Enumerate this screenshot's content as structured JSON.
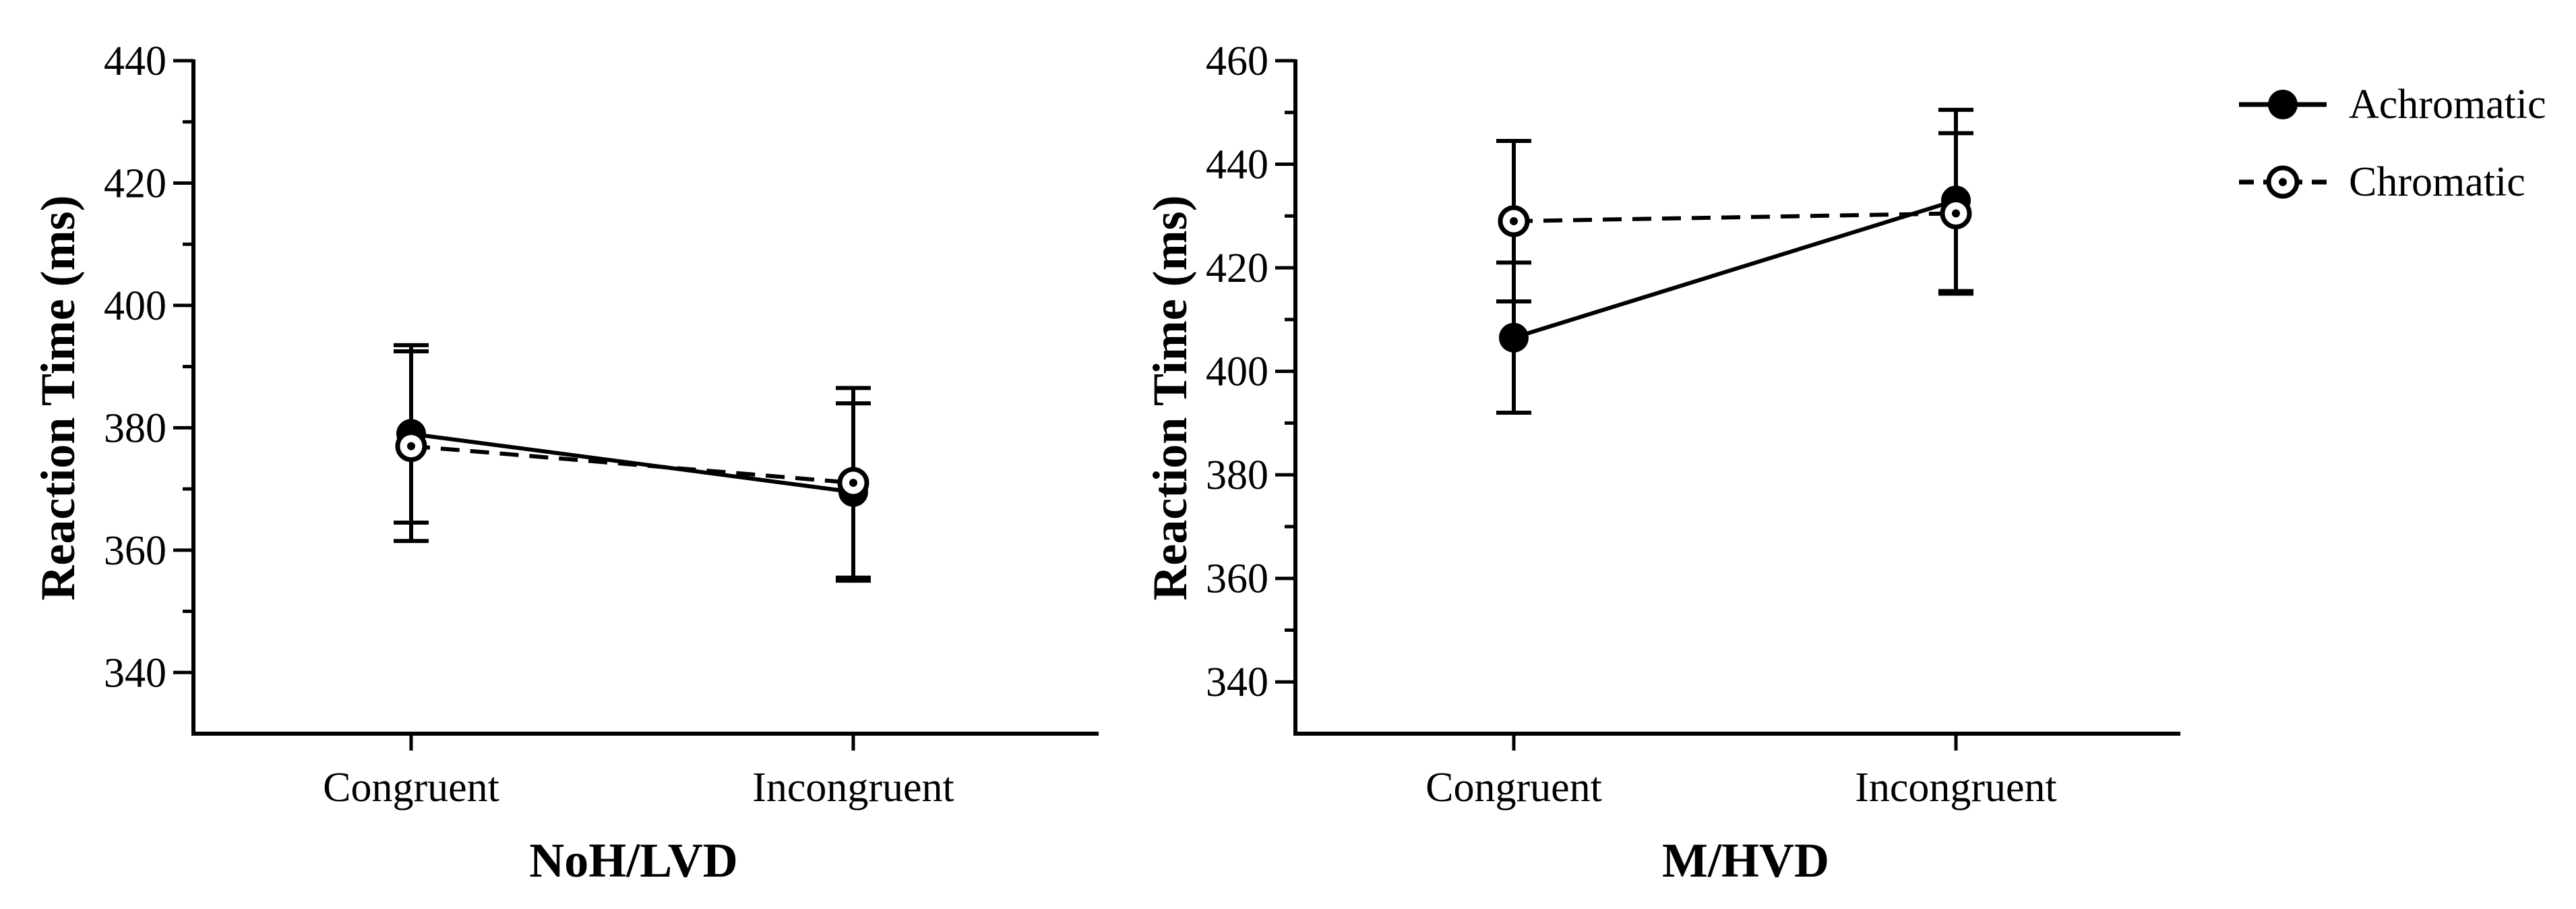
{
  "chart_data": [
    {
      "type": "line",
      "xlabel": "NoH/LVD",
      "ylabel": "Reaction Time (ms)",
      "categories": [
        "Congruent",
        "Incongruent"
      ],
      "ylim": [
        330,
        440
      ],
      "yticks": [
        340,
        360,
        380,
        400,
        420,
        440
      ],
      "series": [
        {
          "name": "Achromatic",
          "values": [
            379,
            369.5
          ],
          "error": [
            14.5,
            14.5
          ],
          "line": "solid",
          "marker": "filled-circle"
        },
        {
          "name": "Chromatic",
          "values": [
            377,
            371
          ],
          "error": [
            15.5,
            15.5
          ],
          "line": "dashed",
          "marker": "open-circle"
        }
      ]
    },
    {
      "type": "line",
      "xlabel": "M/HVD",
      "ylabel": "Reaction Time (ms)",
      "categories": [
        "Congruent",
        "Incongruent"
      ],
      "ylim": [
        330,
        460
      ],
      "yticks": [
        340,
        360,
        380,
        400,
        420,
        440,
        460
      ],
      "series": [
        {
          "name": "Achromatic",
          "values": [
            406.5,
            433
          ],
          "error": [
            14.5,
            17.5
          ],
          "line": "solid",
          "marker": "filled-circle"
        },
        {
          "name": "Chromatic",
          "values": [
            429,
            430.5
          ],
          "error": [
            15.5,
            15.5
          ],
          "line": "dashed",
          "marker": "open-circle"
        }
      ]
    }
  ],
  "legend": {
    "items": [
      {
        "label": "Achromatic",
        "marker": "filled-circle",
        "line": "solid"
      },
      {
        "label": "Chromatic",
        "marker": "open-circle",
        "line": "dashed"
      }
    ]
  }
}
